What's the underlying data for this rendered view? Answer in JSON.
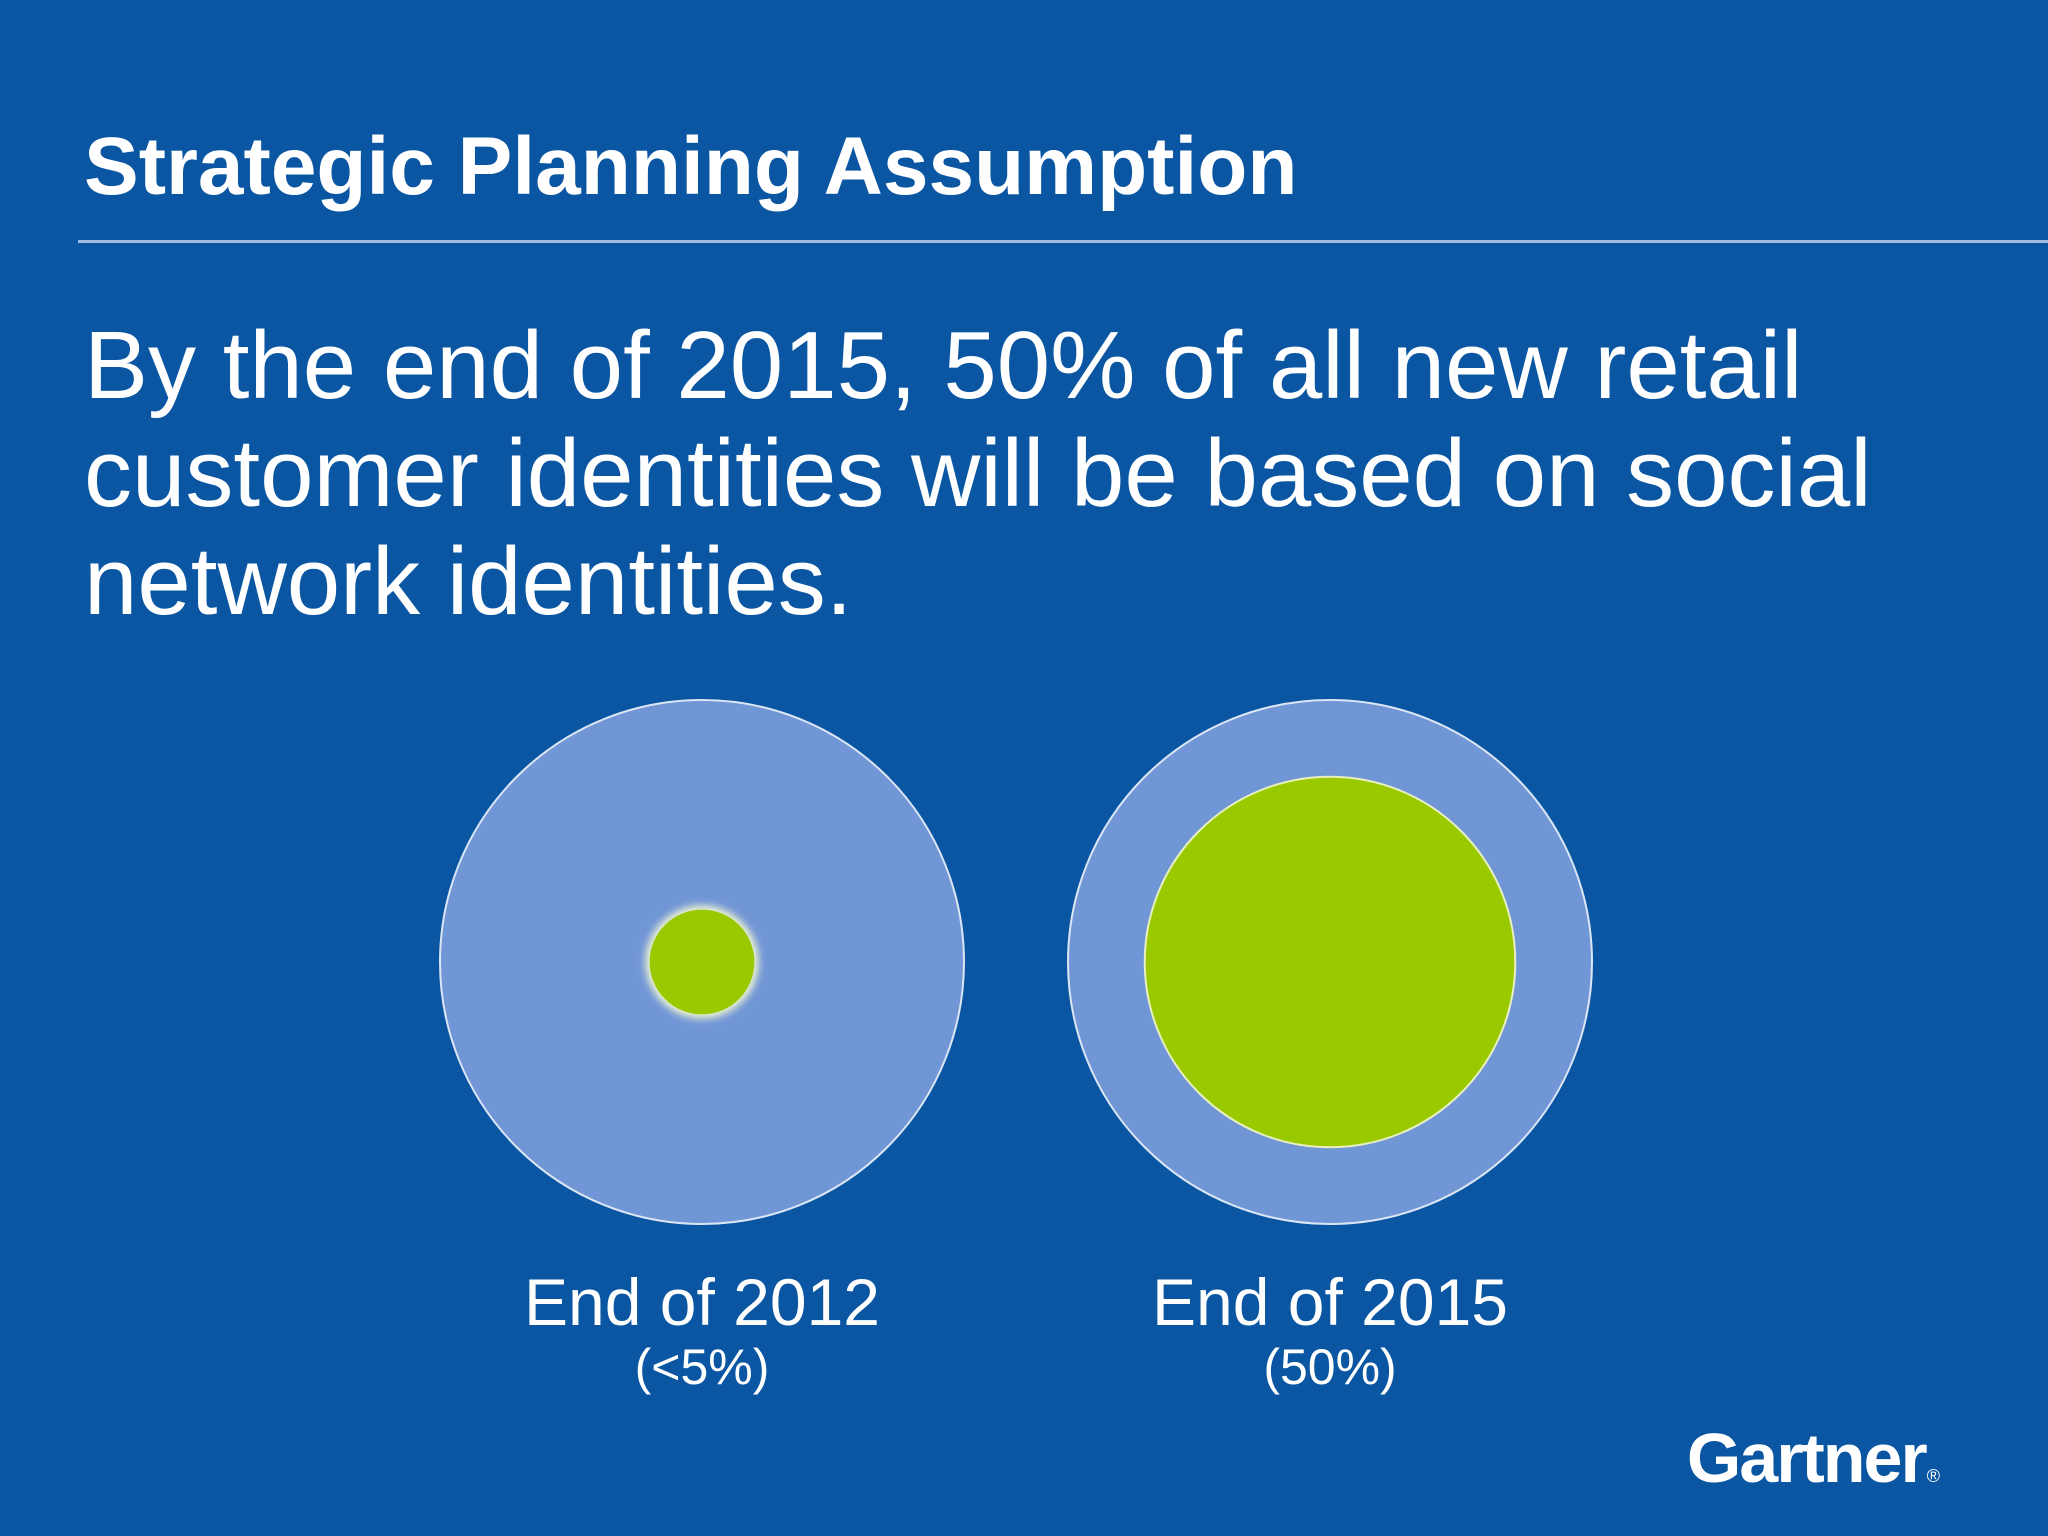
{
  "slide": {
    "title": "Strategic Planning Assumption",
    "statement": "By the end of 2015, 50% of all new retail customer identities will be based on social network identities.",
    "logo": "Gartner",
    "logo_mark": "®"
  },
  "chart_data": {
    "type": "proportional-area",
    "title": "",
    "series_name": "Share of new retail customer identities based on social network identities",
    "categories": [
      "End of 2012",
      "End of 2015"
    ],
    "value_labels": [
      "(<5%)",
      "(50%)"
    ],
    "values": [
      0.04,
      0.5
    ],
    "unit": "fraction",
    "colors": {
      "background": "#0a56a3",
      "outer": "#7196d6",
      "inner": "#9bc900",
      "outline": "#dbe6f5"
    }
  }
}
